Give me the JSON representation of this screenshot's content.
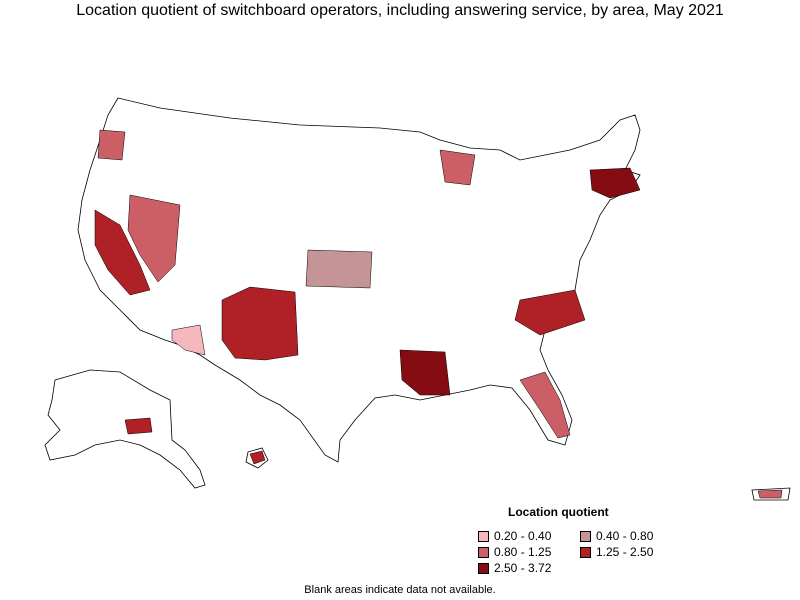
{
  "title": "Location quotient of switchboard operators, including answering service, by area, May 2021",
  "legend": {
    "title": "Location quotient",
    "items": [
      {
        "label": "0.20 - 0.40",
        "color": "#f4b8be"
      },
      {
        "label": "0.40 - 0.80",
        "color": "#c49496"
      },
      {
        "label": "0.80 - 1.25",
        "color": "#cc5f66"
      },
      {
        "label": "1.25 - 2.50",
        "color": "#b02027"
      },
      {
        "label": "2.50 - 3.72",
        "color": "#850c12"
      }
    ]
  },
  "note": "Blank areas indicate data not available."
}
